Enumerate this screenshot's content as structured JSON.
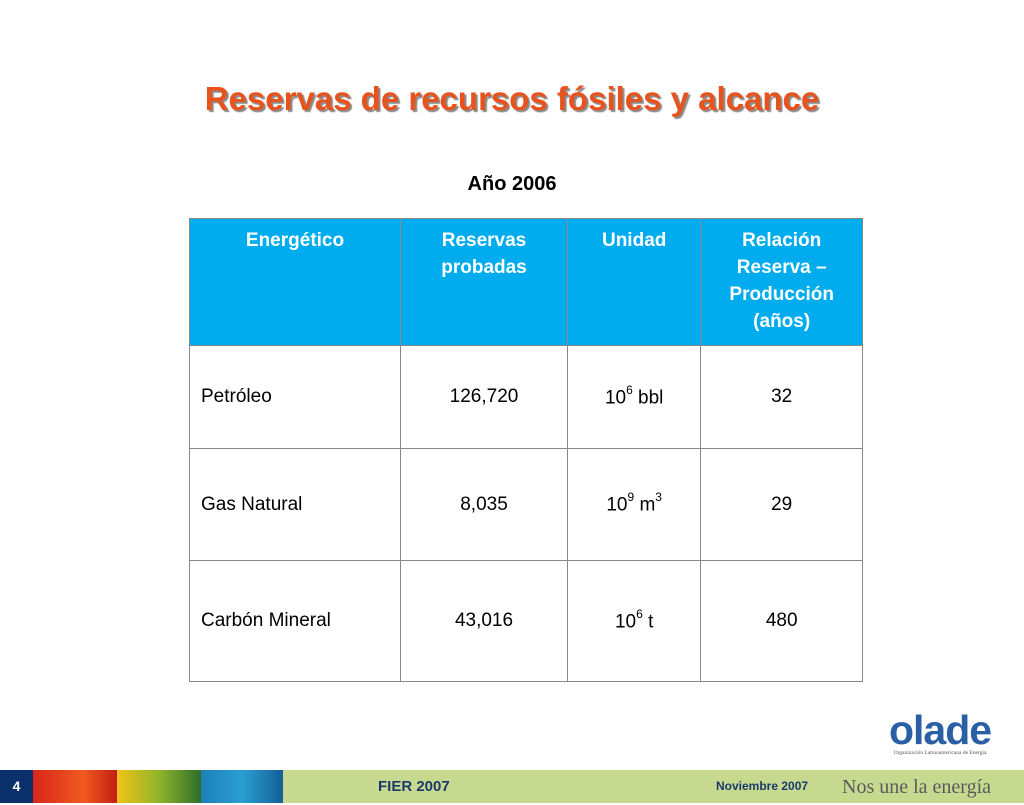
{
  "slide": {
    "title": "Reservas de recursos fósiles y alcance",
    "year_label": "Año 2006"
  },
  "table": {
    "headers": [
      "Energético",
      "Reservas probadas",
      "Unidad",
      "Relación Reserva – Producción (años)"
    ],
    "rows": [
      {
        "energetico": "Petróleo",
        "reservas": "126,720",
        "unit_base": "10",
        "unit_exp": "6",
        "unit_rest": " bbl",
        "unit_rest_exp": "",
        "relacion": "32"
      },
      {
        "energetico": "Gas Natural",
        "reservas": "8,035",
        "unit_base": "10",
        "unit_exp": "9",
        "unit_rest": " m",
        "unit_rest_exp": "3",
        "relacion": "29"
      },
      {
        "energetico": "Carbón Mineral",
        "reservas": "43,016",
        "unit_base": "10",
        "unit_exp": "6",
        "unit_rest": " t",
        "unit_rest_exp": "",
        "relacion": "480"
      }
    ]
  },
  "logo": {
    "word": "olade",
    "subtitle": "Organización Latinoamericana de Energía"
  },
  "footer": {
    "page_number": "4",
    "event": "FIER 2007",
    "date": "Noviembre 2007",
    "slogan": "Nos une la energía",
    "colors": {
      "bar": "#c6d98f",
      "page_box": "#0a2f6b",
      "text": "#1b3a6b"
    }
  },
  "colors": {
    "title": "#e8521c",
    "header_bg": "#00acee"
  }
}
